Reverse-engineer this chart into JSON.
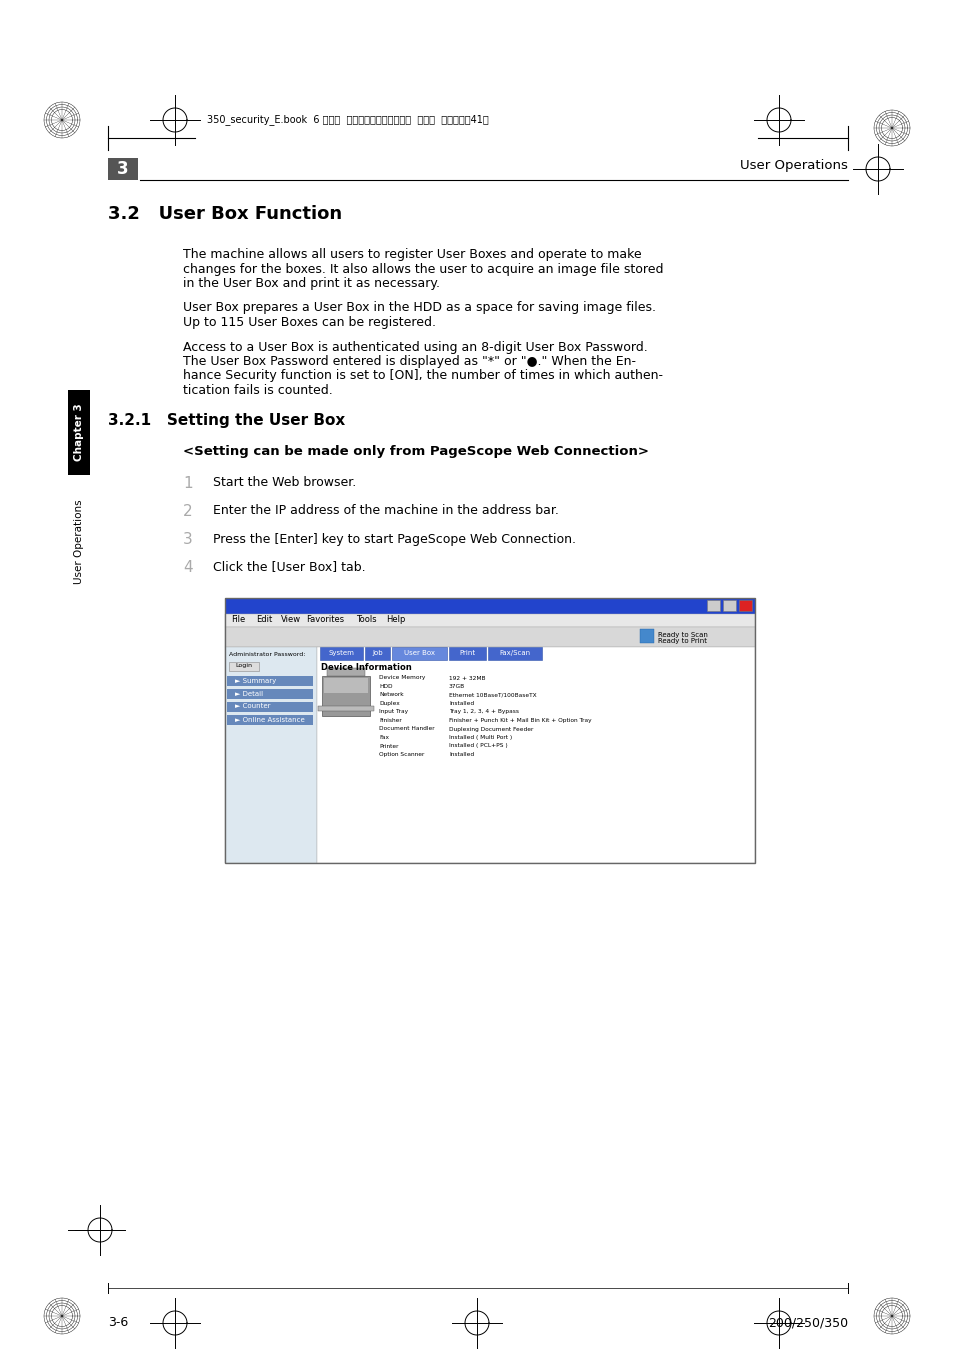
{
  "bg_color": "#ffffff",
  "header_text": "User Operations",
  "chapter_number": "3",
  "section_title": "3.2   User Box Function",
  "subsection_title": "3.2.1   Setting the User Box",
  "body_paragraphs": [
    [
      "The machine allows all users to register User Boxes and operate to make",
      "changes for the boxes. It also allows the user to acquire an image file stored",
      "in the User Box and print it as necessary."
    ],
    [
      "User Box prepares a User Box in the HDD as a space for saving image files.",
      "Up to 115 User Boxes can be registered."
    ],
    [
      "Access to a User Box is authenticated using an 8-digit User Box Password.",
      "The User Box Password entered is displayed as \"*\" or \"●.\" When the En-",
      "hance Security function is set to [ON], the number of times in which authen-",
      "tication fails is counted."
    ]
  ],
  "setting_note": "<Setting can be made only from PageScope Web Connection>",
  "steps": [
    "Start the Web browser.",
    "Enter the IP address of the machine in the address bar.",
    "Press the [Enter] key to start PageScope Web Connection.",
    "Click the [User Box] tab."
  ],
  "footer_left": "3-6",
  "footer_right": "200/250/350",
  "tab_header_text": "350_security_E.book  6 ページ  ２００６年１１月２０日  月曜日  午前１０時41分",
  "sidebar_text": "Chapter 3",
  "sidebar_text2": "User Operations",
  "menu_items": [
    "File",
    "Edit",
    "View",
    "Favorites",
    "Tools",
    "Help"
  ],
  "tab_items": [
    "System",
    "Job",
    "User Box",
    "Print",
    "Fax/Scan"
  ],
  "lsb_items": [
    "Administrator Password:",
    "Login",
    "Summary",
    "Detail",
    "Counter",
    "Online Assistance"
  ],
  "info_items": [
    [
      "Device Memory",
      "192 + 32MB"
    ],
    [
      "HDD",
      "37GB"
    ],
    [
      "Network",
      "Ethernet 10BaseT/100BaseTX"
    ],
    [
      "Duplex",
      "Installed"
    ],
    [
      "Input Tray",
      "Tray 1, 2, 3, 4 + Bypass"
    ],
    [
      "Finisher",
      "Finisher + Punch Kit + Mail Bin Kit + Option Tray"
    ],
    [
      "Document Handler",
      "Duplexing Document Feeder"
    ],
    [
      "Fax",
      "Installed ( Multi Port )"
    ],
    [
      "Printer",
      "Installed ( PCL+PS )"
    ],
    [
      "Option Scanner",
      "Installed"
    ]
  ]
}
